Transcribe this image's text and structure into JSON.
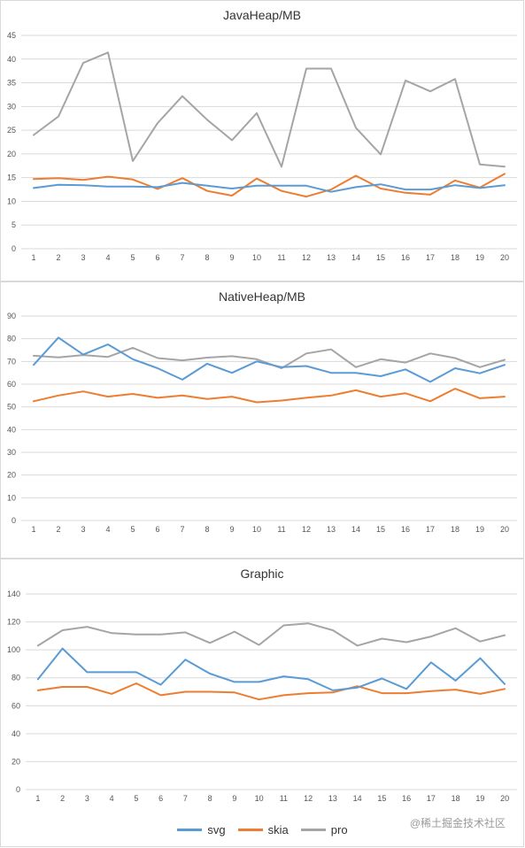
{
  "colors": {
    "svg": "#5b9bd5",
    "skia": "#ed7d31",
    "pro": "#a5a5a5",
    "grid": "#d9d9d9"
  },
  "legend": [
    {
      "name": "svg",
      "color": "#5b9bd5"
    },
    {
      "name": "skia",
      "color": "#ed7d31"
    },
    {
      "name": "pro",
      "color": "#a5a5a5"
    }
  ],
  "watermark": "@稀土掘金技术社区",
  "chart_data": [
    {
      "type": "line",
      "title": "JavaHeap/MB",
      "x": [
        1,
        2,
        3,
        4,
        5,
        6,
        7,
        8,
        9,
        10,
        11,
        12,
        13,
        14,
        15,
        16,
        17,
        18,
        19,
        20
      ],
      "ylim": [
        0,
        45
      ],
      "yticks": [
        0,
        5,
        10,
        15,
        20,
        25,
        30,
        35,
        40,
        45
      ],
      "grid": true,
      "series": [
        {
          "name": "svg",
          "values": [
            12.8,
            13.5,
            13.4,
            13.1,
            13.1,
            13.0,
            13.9,
            13.3,
            12.7,
            13.3,
            13.3,
            13.3,
            12.0,
            13.0,
            13.6,
            12.5,
            12.5,
            13.4,
            12.8,
            13.4
          ]
        },
        {
          "name": "skia",
          "values": [
            14.7,
            14.9,
            14.5,
            15.2,
            14.6,
            12.6,
            14.9,
            12.2,
            11.2,
            14.8,
            12.2,
            11.0,
            12.5,
            15.4,
            12.7,
            11.8,
            11.4,
            14.4,
            12.9,
            15.8
          ]
        },
        {
          "name": "pro",
          "values": [
            24.0,
            27.9,
            39.2,
            41.4,
            18.5,
            26.5,
            32.2,
            27.2,
            22.9,
            28.6,
            17.3,
            38.0,
            38.0,
            25.5,
            19.9,
            35.5,
            33.2,
            35.8,
            17.8,
            17.3
          ]
        }
      ]
    },
    {
      "type": "line",
      "title": "NativeHeap/MB",
      "x": [
        1,
        2,
        3,
        4,
        5,
        6,
        7,
        8,
        9,
        10,
        11,
        12,
        13,
        14,
        15,
        16,
        17,
        18,
        19,
        20
      ],
      "ylim": [
        0,
        90
      ],
      "yticks": [
        0,
        10,
        20,
        30,
        40,
        50,
        60,
        70,
        80,
        90
      ],
      "grid": true,
      "series": [
        {
          "name": "svg",
          "values": [
            68.5,
            80.5,
            73.0,
            77.5,
            71.0,
            67.0,
            62.0,
            69.0,
            65.0,
            70.0,
            67.5,
            68.0,
            65.0,
            65.0,
            63.5,
            66.5,
            61.0,
            67.0,
            64.8,
            68.5
          ]
        },
        {
          "name": "skia",
          "values": [
            52.5,
            55.0,
            56.8,
            54.5,
            55.7,
            54.0,
            55.0,
            53.5,
            54.5,
            52.0,
            52.8,
            54.0,
            55.0,
            57.3,
            54.5,
            56.0,
            52.5,
            58.0,
            53.8,
            54.5
          ]
        },
        {
          "name": "pro",
          "values": [
            72.5,
            71.8,
            72.8,
            72.0,
            76.0,
            71.5,
            70.5,
            71.7,
            72.3,
            71.0,
            67.0,
            73.5,
            75.3,
            67.5,
            71.0,
            69.5,
            73.5,
            71.5,
            67.5,
            70.7
          ]
        }
      ]
    },
    {
      "type": "line",
      "title": "Graphic",
      "x": [
        1,
        2,
        3,
        4,
        5,
        6,
        7,
        8,
        9,
        10,
        11,
        12,
        13,
        14,
        15,
        16,
        17,
        18,
        19,
        20
      ],
      "ylim": [
        0,
        140
      ],
      "yticks": [
        0,
        20,
        40,
        60,
        80,
        100,
        120,
        140
      ],
      "grid": true,
      "series": [
        {
          "name": "svg",
          "values": [
            79,
            101,
            84,
            84,
            84,
            75,
            93,
            83,
            77,
            77,
            81,
            79,
            71,
            73,
            79.5,
            72,
            91,
            78,
            94,
            75.5
          ]
        },
        {
          "name": "skia",
          "values": [
            71,
            73.5,
            73.5,
            68.5,
            76,
            67.5,
            70,
            70,
            69.5,
            64.5,
            67.5,
            69,
            69.5,
            74,
            69,
            69,
            70.5,
            71.5,
            68.5,
            72
          ]
        },
        {
          "name": "pro",
          "values": [
            103,
            114,
            116.5,
            112,
            111,
            111,
            112.5,
            105,
            113,
            103.5,
            117.5,
            119,
            114,
            103,
            108,
            105.5,
            109.5,
            115.5,
            106,
            110.5
          ]
        }
      ]
    }
  ]
}
